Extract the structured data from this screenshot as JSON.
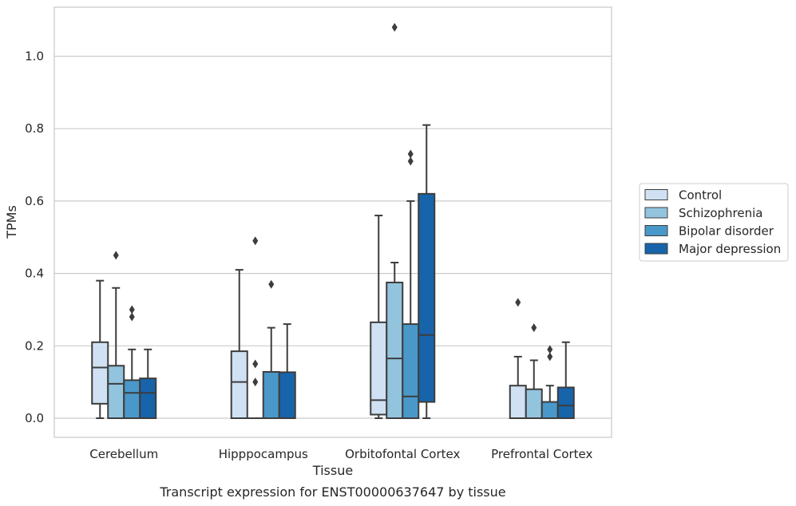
{
  "chart_data": {
    "type": "box",
    "title": "",
    "caption": "Transcript expression for ENST00000637647 by tissue",
    "xlabel": "Tissue",
    "ylabel": "TPMs",
    "ylim": [
      -0.05,
      1.14
    ],
    "yticks": [
      "0.0",
      "0.2",
      "0.4",
      "0.6",
      "0.8",
      "1.0"
    ],
    "grid": "horizontal",
    "legend_position": "right",
    "categories": [
      "Cerebellum",
      "Hipppocampus",
      "Orbitofontal Cortex",
      "Prefrontal Cortex"
    ],
    "series": [
      {
        "name": "Control",
        "color": "#cfe1f2",
        "boxes": [
          {
            "whislo": 0.0,
            "q1": 0.04,
            "med": 0.14,
            "q3": 0.21,
            "whishi": 0.38,
            "fliers": []
          },
          {
            "whislo": 0.0,
            "q1": 0.0,
            "med": 0.1,
            "q3": 0.185,
            "whishi": 0.41,
            "fliers": []
          },
          {
            "whislo": 0.0,
            "q1": 0.01,
            "med": 0.05,
            "q3": 0.265,
            "whishi": 0.56,
            "fliers": []
          },
          {
            "whislo": 0.0,
            "q1": 0.0,
            "med": 0.0,
            "q3": 0.09,
            "whishi": 0.17,
            "fliers": [
              0.32
            ]
          }
        ]
      },
      {
        "name": "Schizophrenia",
        "color": "#93c4de",
        "boxes": [
          {
            "whislo": 0.0,
            "q1": 0.0,
            "med": 0.095,
            "q3": 0.145,
            "whishi": 0.36,
            "fliers": [
              0.45
            ]
          },
          {
            "whislo": 0.0,
            "q1": 0.0,
            "med": 0.0,
            "q3": 0.0,
            "whishi": 0.0,
            "fliers": [
              0.1,
              0.15,
              0.49
            ]
          },
          {
            "whislo": 0.0,
            "q1": 0.0,
            "med": 0.165,
            "q3": 0.375,
            "whishi": 0.43,
            "fliers": [
              1.08
            ]
          },
          {
            "whislo": 0.0,
            "q1": 0.0,
            "med": 0.0,
            "q3": 0.08,
            "whishi": 0.16,
            "fliers": [
              0.25
            ]
          }
        ]
      },
      {
        "name": "Bipolar disorder",
        "color": "#4a98c9",
        "boxes": [
          {
            "whislo": 0.0,
            "q1": 0.0,
            "med": 0.07,
            "q3": 0.105,
            "whishi": 0.19,
            "fliers": [
              0.28,
              0.3
            ]
          },
          {
            "whislo": 0.0,
            "q1": 0.0,
            "med": 0.0,
            "q3": 0.128,
            "whishi": 0.25,
            "fliers": [
              0.37
            ]
          },
          {
            "whislo": 0.0,
            "q1": 0.0,
            "med": 0.06,
            "q3": 0.26,
            "whishi": 0.6,
            "fliers": [
              0.71,
              0.73
            ]
          },
          {
            "whislo": 0.0,
            "q1": 0.0,
            "med": 0.0,
            "q3": 0.045,
            "whishi": 0.09,
            "fliers": [
              0.17,
              0.19
            ]
          }
        ]
      },
      {
        "name": "Major depression",
        "color": "#1764ab",
        "boxes": [
          {
            "whislo": 0.0,
            "q1": 0.0,
            "med": 0.07,
            "q3": 0.11,
            "whishi": 0.19,
            "fliers": []
          },
          {
            "whislo": 0.0,
            "q1": 0.0,
            "med": 0.0,
            "q3": 0.127,
            "whishi": 0.26,
            "fliers": []
          },
          {
            "whislo": 0.0,
            "q1": 0.045,
            "med": 0.23,
            "q3": 0.62,
            "whishi": 0.81,
            "fliers": []
          },
          {
            "whislo": 0.0,
            "q1": 0.0,
            "med": 0.035,
            "q3": 0.085,
            "whishi": 0.21,
            "fliers": []
          }
        ]
      }
    ]
  }
}
